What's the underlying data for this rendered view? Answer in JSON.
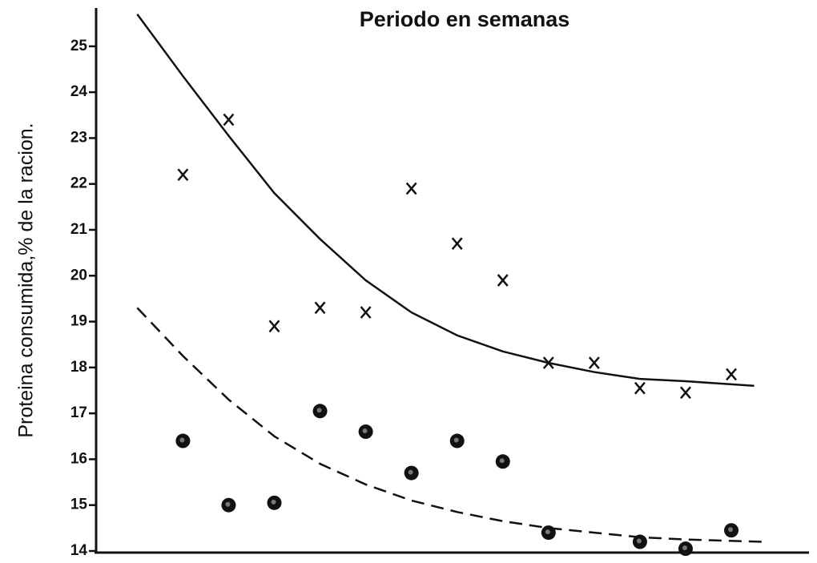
{
  "chart_data": {
    "type": "scatter",
    "title": "Periodo en semanas",
    "y_label": "Proteina consumida,% de la racion.",
    "xlim": [
      -0.9,
      14.7
    ],
    "ylim": [
      14,
      25.8
    ],
    "yticks": [
      14,
      15,
      16,
      17,
      18,
      19,
      20,
      21,
      22,
      23,
      24,
      25
    ],
    "color": "#111111",
    "series": [
      {
        "marker": "x",
        "x": [
          1,
          2,
          3,
          4,
          5,
          6,
          7,
          8,
          9,
          10,
          11,
          12,
          13
        ],
        "values": [
          22.2,
          23.4,
          18.9,
          19.3,
          19.2,
          21.9,
          20.7,
          19.9,
          18.1,
          18.1,
          17.55,
          17.45,
          17.85
        ]
      },
      {
        "marker": "circle",
        "x": [
          1,
          2,
          3,
          4,
          5,
          6,
          7,
          8,
          9,
          10,
          11,
          12,
          13
        ],
        "values": [
          16.4,
          15.0,
          15.05,
          17.05,
          16.6,
          15.7,
          16.4,
          15.95,
          14.4,
          null,
          14.2,
          14.05,
          14.45
        ]
      },
      {
        "line": "solid",
        "x": [
          0,
          1,
          2,
          3,
          4,
          5,
          6,
          7,
          8,
          9,
          10,
          11,
          12,
          13.5
        ],
        "values": [
          25.7,
          24.35,
          23.05,
          21.8,
          20.8,
          19.9,
          19.2,
          18.7,
          18.35,
          18.1,
          17.9,
          17.75,
          17.7,
          17.6
        ]
      },
      {
        "line": "dashed",
        "x": [
          0,
          1,
          2,
          3,
          4,
          5,
          6,
          7,
          8,
          9,
          10,
          11,
          12,
          13.7
        ],
        "values": [
          19.3,
          18.25,
          17.3,
          16.5,
          15.9,
          15.45,
          15.1,
          14.85,
          14.65,
          14.5,
          14.4,
          14.3,
          14.25,
          14.2
        ]
      }
    ]
  }
}
